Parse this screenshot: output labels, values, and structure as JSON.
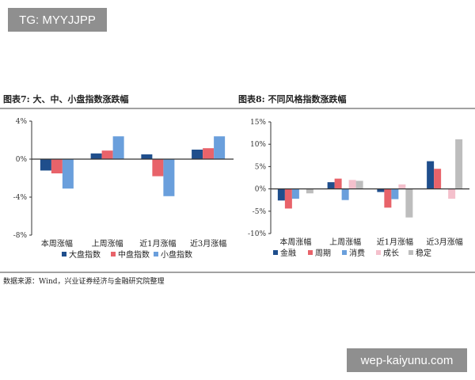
{
  "watermarks": {
    "top_left": "TG: MYYJJPP",
    "bottom_right": "wep-kaiyunu.com"
  },
  "source": "数据来源：Wind，兴业证券经济与金融研究院整理",
  "chart_data": [
    {
      "type": "bar",
      "title": "图表7: 大、中、小盘指数涨跌幅",
      "categories": [
        "本周涨幅",
        "上周涨幅",
        "近1月涨幅",
        "近3月涨幅"
      ],
      "ylim": [
        -8,
        4
      ],
      "yticks": [
        4,
        0,
        -4,
        -8
      ],
      "ytick_labels": [
        "4%",
        "0%",
        "-4%",
        "-8%"
      ],
      "legend_position": "bottom",
      "grid": false,
      "series": [
        {
          "name": "大盘指数",
          "color": "#1f4e8c",
          "values": [
            -1.2,
            0.6,
            0.5,
            1.0
          ]
        },
        {
          "name": "中盘指数",
          "color": "#e8636a",
          "values": [
            -1.5,
            0.9,
            -1.8,
            1.15
          ]
        },
        {
          "name": "小盘指数",
          "color": "#6a9fdc",
          "values": [
            -3.1,
            2.4,
            -3.9,
            2.4
          ]
        }
      ]
    },
    {
      "type": "bar",
      "title": "图表8: 不同风格指数涨跌幅",
      "categories": [
        "本周涨幅",
        "上周涨幅",
        "近1月涨幅",
        "近3月涨幅"
      ],
      "ylim": [
        -10,
        15
      ],
      "yticks": [
        15,
        10,
        5,
        0,
        -5,
        -10
      ],
      "ytick_labels": [
        "15%",
        "10%",
        "5%",
        "0%",
        "-5%",
        "-10%"
      ],
      "legend_position": "bottom",
      "grid": false,
      "series": [
        {
          "name": "金融",
          "color": "#1f4e8c",
          "values": [
            -2.6,
            1.5,
            -0.7,
            6.2
          ]
        },
        {
          "name": "周期",
          "color": "#e8636a",
          "values": [
            -4.4,
            2.3,
            -4.2,
            4.5
          ]
        },
        {
          "name": "消费",
          "color": "#6a9fdc",
          "values": [
            -2.2,
            -2.5,
            -2.3,
            0
          ]
        },
        {
          "name": "成长",
          "color": "#f4c0cc",
          "values": [
            0,
            2.0,
            1.0,
            -2.2
          ]
        },
        {
          "name": "稳定",
          "color": "#bdbdbd",
          "values": [
            -1.0,
            1.8,
            -6.4,
            11.1
          ]
        }
      ]
    }
  ]
}
